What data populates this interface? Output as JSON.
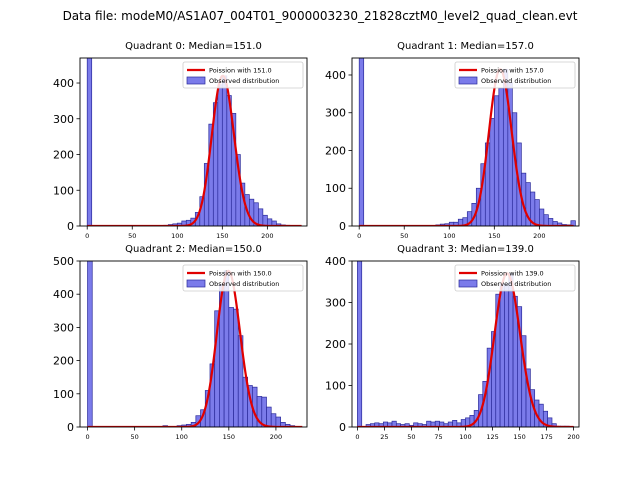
{
  "suptitle": "Data file: modeM0/AS1A07_004T01_9000003230_21828cztM0_level2_quad_clean.evt",
  "colors": {
    "bar_fill": "#7b7bea",
    "bar_edge": "#2a2a9a",
    "fit_line": "#e00000",
    "axis": "#000000"
  },
  "chart_data": [
    {
      "type": "bar",
      "title": "Quadrant 0: Median=151.0",
      "median": 151.0,
      "legend": {
        "fit_label": "Poission with 151.0",
        "hist_label": "Observed distribution",
        "placement": "top-right"
      },
      "xlim": [
        -8,
        244
      ],
      "ylim": [
        0,
        470
      ],
      "xticks": [
        0,
        50,
        100,
        150,
        200
      ],
      "yticks": [
        0,
        100,
        200,
        300,
        400
      ],
      "bin_width": 5,
      "bins": [
        [
          0,
          470
        ],
        [
          85,
          2
        ],
        [
          90,
          4
        ],
        [
          95,
          6
        ],
        [
          100,
          8
        ],
        [
          105,
          14
        ],
        [
          110,
          16
        ],
        [
          115,
          22
        ],
        [
          120,
          38
        ],
        [
          125,
          82
        ],
        [
          130,
          175
        ],
        [
          135,
          285
        ],
        [
          140,
          345
        ],
        [
          145,
          395
        ],
        [
          150,
          420
        ],
        [
          155,
          365
        ],
        [
          160,
          315
        ],
        [
          165,
          200
        ],
        [
          170,
          120
        ],
        [
          175,
          88
        ],
        [
          180,
          75
        ],
        [
          185,
          65
        ],
        [
          190,
          48
        ],
        [
          195,
          30
        ],
        [
          200,
          20
        ],
        [
          205,
          14
        ],
        [
          210,
          6
        ],
        [
          215,
          3
        ],
        [
          220,
          2
        ],
        [
          225,
          1
        ]
      ],
      "fit_x_range": [
        0,
        238
      ]
    },
    {
      "type": "bar",
      "title": "Quadrant 1: Median=157.0",
      "median": 157.0,
      "legend": {
        "fit_label": "Poission with 157.0",
        "hist_label": "Observed distribution",
        "placement": "top-right"
      },
      "xlim": [
        -8,
        244
      ],
      "ylim": [
        0,
        445
      ],
      "xticks": [
        0,
        50,
        100,
        150,
        200
      ],
      "yticks": [
        0,
        100,
        200,
        300,
        400
      ],
      "bin_width": 5,
      "bins": [
        [
          0,
          445
        ],
        [
          85,
          3
        ],
        [
          90,
          5
        ],
        [
          95,
          6
        ],
        [
          100,
          10
        ],
        [
          105,
          10
        ],
        [
          110,
          18
        ],
        [
          115,
          22
        ],
        [
          120,
          38
        ],
        [
          125,
          60
        ],
        [
          130,
          100
        ],
        [
          135,
          165
        ],
        [
          140,
          220
        ],
        [
          145,
          285
        ],
        [
          150,
          345
        ],
        [
          155,
          365
        ],
        [
          160,
          415
        ],
        [
          165,
          380
        ],
        [
          170,
          300
        ],
        [
          175,
          220
        ],
        [
          180,
          140
        ],
        [
          185,
          115
        ],
        [
          190,
          90
        ],
        [
          195,
          70
        ],
        [
          200,
          45
        ],
        [
          205,
          30
        ],
        [
          210,
          20
        ],
        [
          215,
          12
        ],
        [
          220,
          8
        ],
        [
          225,
          4
        ],
        [
          230,
          3
        ],
        [
          235,
          14
        ]
      ],
      "fit_x_range": [
        0,
        238
      ]
    },
    {
      "type": "bar",
      "title": "Quadrant 2: Median=150.0",
      "median": 150.0,
      "legend": {
        "fit_label": "Poission with 150.0",
        "hist_label": "Observed distribution",
        "placement": "top-right"
      },
      "xlim": [
        -8,
        233
      ],
      "ylim": [
        0,
        500
      ],
      "xticks": [
        0,
        50,
        100,
        150,
        200
      ],
      "yticks": [
        0,
        100,
        200,
        300,
        400,
        500
      ],
      "bin_width": 5,
      "bins": [
        [
          0,
          500
        ],
        [
          80,
          4
        ],
        [
          95,
          4
        ],
        [
          100,
          6
        ],
        [
          105,
          8
        ],
        [
          110,
          14
        ],
        [
          115,
          34
        ],
        [
          120,
          52
        ],
        [
          125,
          110
        ],
        [
          130,
          190
        ],
        [
          135,
          350
        ],
        [
          140,
          430
        ],
        [
          145,
          470
        ],
        [
          150,
          360
        ],
        [
          155,
          355
        ],
        [
          160,
          275
        ],
        [
          165,
          150
        ],
        [
          170,
          125
        ],
        [
          175,
          120
        ],
        [
          180,
          92
        ],
        [
          185,
          90
        ],
        [
          190,
          60
        ],
        [
          195,
          40
        ],
        [
          200,
          30
        ],
        [
          205,
          14
        ],
        [
          210,
          8
        ],
        [
          215,
          4
        ],
        [
          220,
          2
        ]
      ],
      "fit_x_range": [
        0,
        228
      ]
    },
    {
      "type": "bar",
      "title": "Quadrant 3: Median=139.0",
      "median": 139.0,
      "legend": {
        "fit_label": "Poission with 139.0",
        "hist_label": "Observed distribution",
        "placement": "top-right"
      },
      "xlim": [
        -5,
        205
      ],
      "ylim": [
        0,
        400
      ],
      "xticks": [
        0,
        25,
        50,
        75,
        100,
        125,
        150,
        175,
        200
      ],
      "yticks": [
        0,
        100,
        200,
        300,
        400
      ],
      "bin_width": 4,
      "bins": [
        [
          0,
          400
        ],
        [
          8,
          6
        ],
        [
          12,
          8
        ],
        [
          16,
          10
        ],
        [
          20,
          8
        ],
        [
          24,
          12
        ],
        [
          28,
          10
        ],
        [
          32,
          14
        ],
        [
          36,
          8
        ],
        [
          40,
          6
        ],
        [
          44,
          8
        ],
        [
          48,
          4
        ],
        [
          52,
          10
        ],
        [
          56,
          8
        ],
        [
          60,
          6
        ],
        [
          64,
          14
        ],
        [
          68,
          12
        ],
        [
          72,
          14
        ],
        [
          76,
          12
        ],
        [
          80,
          8
        ],
        [
          84,
          12
        ],
        [
          88,
          16
        ],
        [
          92,
          10
        ],
        [
          96,
          18
        ],
        [
          100,
          22
        ],
        [
          104,
          28
        ],
        [
          108,
          40
        ],
        [
          112,
          78
        ],
        [
          116,
          110
        ],
        [
          120,
          190
        ],
        [
          124,
          230
        ],
        [
          128,
          320
        ],
        [
          132,
          345
        ],
        [
          136,
          345
        ],
        [
          140,
          370
        ],
        [
          144,
          315
        ],
        [
          148,
          290
        ],
        [
          152,
          220
        ],
        [
          156,
          140
        ],
        [
          160,
          90
        ],
        [
          164,
          65
        ],
        [
          168,
          55
        ],
        [
          172,
          38
        ],
        [
          176,
          22
        ],
        [
          180,
          8
        ],
        [
          184,
          2
        ],
        [
          188,
          2
        ],
        [
          192,
          2
        ],
        [
          196,
          1
        ]
      ],
      "fit_x_range": [
        0,
        200
      ]
    }
  ]
}
